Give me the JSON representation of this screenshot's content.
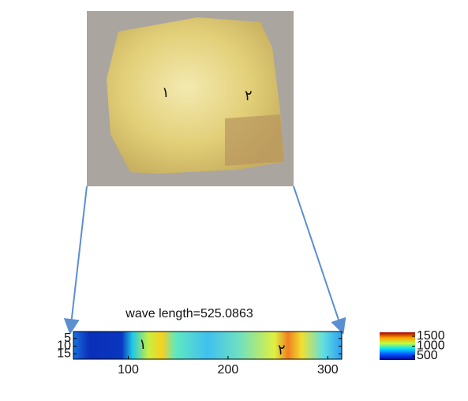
{
  "photo": {
    "labels": [
      "١",
      "٢"
    ]
  },
  "heatmap": {
    "title": "wave length=525.0863",
    "labels": [
      "١",
      "٢"
    ],
    "xlim": [
      45,
      314
    ],
    "xticks": [
      100,
      200,
      300
    ],
    "ylim": [
      0.5,
      18.5
    ],
    "yticks": [
      5,
      10,
      15
    ],
    "colorbar": {
      "lim": [
        300,
        1700
      ],
      "ticks": [
        500,
        1000,
        1500
      ]
    }
  }
}
